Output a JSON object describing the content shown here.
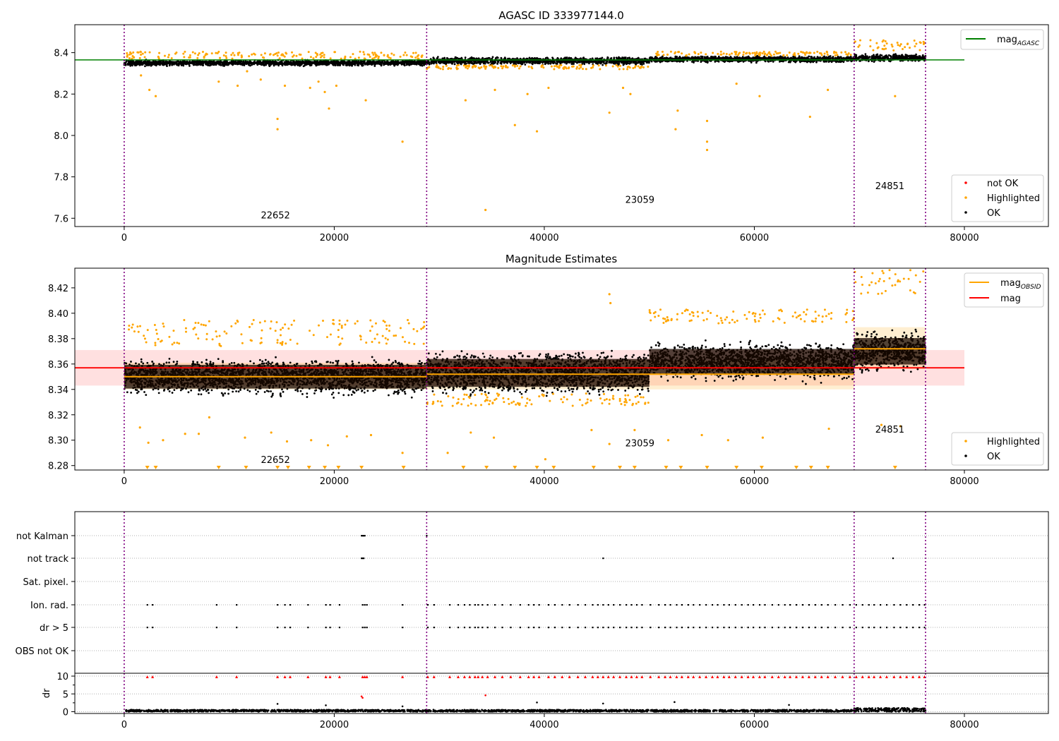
{
  "figure": {
    "title": "AGASC ID 333977144.0"
  },
  "chart_data": [
    {
      "type": "scatter",
      "title": "AGASC ID 333977144.0",
      "xlim": [
        -4700,
        88000
      ],
      "ylim": [
        7.56,
        8.535
      ],
      "x_ticks": [
        0,
        20000,
        40000,
        60000,
        80000
      ],
      "x_tick_labels": [
        "0",
        "20000",
        "40000",
        "60000",
        "80000"
      ],
      "y_ticks": [
        7.6,
        7.8,
        8.0,
        8.2,
        8.4
      ],
      "y_tick_labels": [
        "7.6",
        "7.8",
        "8.0",
        "8.2",
        "8.4"
      ],
      "grid": false,
      "obs_boundaries": [
        0,
        28800,
        69500,
        76300
      ],
      "obs_labels": [
        {
          "text": "22652",
          "x": 14400,
          "y": 7.6
        },
        {
          "text": "23059",
          "x": 49100,
          "y": 7.675
        },
        {
          "text": "24851",
          "x": 72900,
          "y": 7.74
        }
      ],
      "reference_line": {
        "name": "mag_AGASC",
        "y": 8.365,
        "x_range": [
          -4700,
          80000
        ],
        "color": "#008000"
      },
      "ok_segments": [
        {
          "x0": 0,
          "x1": 28800,
          "center": 8.35,
          "half_width": 0.017
        },
        {
          "x0": 28800,
          "x1": 50000,
          "center": 8.36,
          "half_width": 0.022
        },
        {
          "x0": 50000,
          "x1": 69500,
          "center": 8.368,
          "half_width": 0.018
        },
        {
          "x0": 69500,
          "x1": 76300,
          "center": 8.375,
          "half_width": 0.022
        }
      ],
      "highlight_band": [
        {
          "x0": 0,
          "x1": 28800,
          "lo": 8.37,
          "hi": 8.405
        },
        {
          "x0": 28800,
          "x1": 50000,
          "lo": 8.32,
          "hi": 8.34
        },
        {
          "x0": 50000,
          "x1": 69500,
          "lo": 8.385,
          "hi": 8.405
        },
        {
          "x0": 69500,
          "x1": 76300,
          "lo": 8.41,
          "hi": 8.46
        }
      ],
      "highlighted_outliers": [
        [
          1600,
          8.29
        ],
        [
          2400,
          8.22
        ],
        [
          3000,
          8.19
        ],
        [
          9000,
          8.26
        ],
        [
          10800,
          8.24
        ],
        [
          11700,
          8.31
        ],
        [
          13000,
          8.27
        ],
        [
          14600,
          8.08
        ],
        [
          14600,
          8.03
        ],
        [
          15300,
          8.24
        ],
        [
          17700,
          8.23
        ],
        [
          18500,
          8.26
        ],
        [
          19100,
          8.21
        ],
        [
          19500,
          8.13
        ],
        [
          20200,
          8.24
        ],
        [
          23000,
          8.17
        ],
        [
          26500,
          7.97
        ],
        [
          32500,
          8.17
        ],
        [
          34400,
          7.64
        ],
        [
          35300,
          8.22
        ],
        [
          37200,
          8.05
        ],
        [
          38400,
          8.2
        ],
        [
          39300,
          8.02
        ],
        [
          40400,
          8.23
        ],
        [
          46200,
          8.11
        ],
        [
          47500,
          8.23
        ],
        [
          48200,
          8.2
        ],
        [
          52500,
          8.03
        ],
        [
          52700,
          8.12
        ],
        [
          55500,
          8.07
        ],
        [
          55500,
          7.97
        ],
        [
          55500,
          7.93
        ],
        [
          58300,
          8.25
        ],
        [
          60500,
          8.19
        ],
        [
          65300,
          8.09
        ],
        [
          67000,
          8.22
        ],
        [
          73400,
          8.19
        ]
      ],
      "legends": [
        {
          "position": "top-right",
          "entries": [
            {
              "label": "mag",
              "sub": "AGASC",
              "color": "#008000",
              "kind": "line"
            }
          ]
        },
        {
          "position": "bottom-right",
          "entries": [
            {
              "label": "not OK",
              "color": "#ff0000",
              "kind": "dot"
            },
            {
              "label": "Highlighted",
              "color": "#ffa500",
              "kind": "dot"
            },
            {
              "label": "OK",
              "color": "#000000",
              "kind": "dot"
            }
          ]
        }
      ]
    },
    {
      "type": "scatter",
      "title": "Magnitude Estimates",
      "xlim": [
        -4700,
        88000
      ],
      "ylim": [
        8.2765,
        8.4355
      ],
      "x_ticks": [
        0,
        20000,
        40000,
        60000,
        80000
      ],
      "x_tick_labels": [
        "0",
        "20000",
        "40000",
        "60000",
        "80000"
      ],
      "y_ticks": [
        8.28,
        8.3,
        8.32,
        8.34,
        8.36,
        8.38,
        8.4,
        8.42
      ],
      "y_tick_labels": [
        "8.28",
        "8.30",
        "8.32",
        "8.34",
        "8.36",
        "8.38",
        "8.40",
        "8.42"
      ],
      "grid": false,
      "obs_boundaries": [
        0,
        28800,
        69500,
        76300
      ],
      "obs_labels": [
        {
          "text": "22652",
          "x": 14400,
          "y": 8.282
        },
        {
          "text": "23059",
          "x": 49100,
          "y": 8.295
        },
        {
          "text": "24851",
          "x": 72900,
          "y": 8.306
        }
      ],
      "mag": {
        "name": "mag",
        "y": 8.357,
        "lo": 8.343,
        "hi": 8.371,
        "x_range": [
          -4700,
          80000
        ],
        "color": "#ff0000"
      },
      "mag_obsid": [
        {
          "x0": 0,
          "x1": 28800,
          "y": 8.35,
          "lo": 8.34,
          "hi": 8.361
        },
        {
          "x0": 28800,
          "x1": 69500,
          "y": 8.352,
          "lo": 8.34,
          "hi": 8.363
        },
        {
          "x0": 69500,
          "x1": 76300,
          "y": 8.372,
          "lo": 8.356,
          "hi": 8.389
        }
      ],
      "ok_segments": [
        {
          "x0": 0,
          "x1": 28800,
          "center": 8.35,
          "half_width": 0.017
        },
        {
          "x0": 28800,
          "x1": 50000,
          "center": 8.353,
          "half_width": 0.02
        },
        {
          "x0": 50000,
          "x1": 69500,
          "center": 8.362,
          "half_width": 0.018
        },
        {
          "x0": 69500,
          "x1": 76300,
          "center": 8.37,
          "half_width": 0.019
        }
      ],
      "highlight_band": [
        {
          "x0": 0,
          "x1": 28800,
          "lo": 8.374,
          "hi": 8.395
        },
        {
          "x0": 28800,
          "x1": 50000,
          "lo": 8.327,
          "hi": 8.337
        },
        {
          "x0": 50000,
          "x1": 69500,
          "lo": 8.392,
          "hi": 8.403
        },
        {
          "x0": 69500,
          "x1": 76300,
          "lo": 8.415,
          "hi": 8.434
        }
      ],
      "highlighted_outliers": [
        [
          1500,
          8.31
        ],
        [
          2300,
          8.298
        ],
        [
          3700,
          8.3
        ],
        [
          5800,
          8.305
        ],
        [
          7100,
          8.305
        ],
        [
          8100,
          8.318
        ],
        [
          11500,
          8.302
        ],
        [
          14000,
          8.306
        ],
        [
          15500,
          8.299
        ],
        [
          17800,
          8.3
        ],
        [
          19400,
          8.296
        ],
        [
          21200,
          8.303
        ],
        [
          23500,
          8.304
        ],
        [
          26500,
          8.29
        ],
        [
          30800,
          8.29
        ],
        [
          33000,
          8.306
        ],
        [
          35200,
          8.302
        ],
        [
          40100,
          8.285
        ],
        [
          44500,
          8.308
        ],
        [
          46200,
          8.297
        ],
        [
          48600,
          8.308
        ],
        [
          51800,
          8.3
        ],
        [
          55000,
          8.304
        ],
        [
          57500,
          8.3
        ],
        [
          60800,
          8.302
        ],
        [
          67100,
          8.309
        ],
        [
          72100,
          8.312
        ],
        [
          73900,
          8.311
        ],
        [
          46200,
          8.415
        ],
        [
          46300,
          8.408
        ]
      ],
      "clipped_low_x": [
        2200,
        3000,
        9000,
        11600,
        14600,
        15600,
        17600,
        19100,
        20400,
        22600,
        26600,
        32300,
        34500,
        37200,
        39300,
        40900,
        44700,
        47200,
        48600,
        51600,
        53000,
        55500,
        58300,
        60700,
        64000,
        65400,
        67000,
        73400
      ],
      "legends": [
        {
          "position": "top-right",
          "entries": [
            {
              "label": "mag",
              "sub": "OBSID",
              "color": "#ffa500",
              "kind": "line"
            },
            {
              "label": "mag",
              "sub": "",
              "color": "#ff0000",
              "kind": "line"
            }
          ]
        },
        {
          "position": "bottom-right",
          "entries": [
            {
              "label": "Highlighted",
              "color": "#ffa500",
              "kind": "dot"
            },
            {
              "label": "OK",
              "color": "#000000",
              "kind": "dot"
            }
          ]
        }
      ]
    },
    {
      "type": "scatter",
      "title": "",
      "xlim": [
        -4700,
        88000
      ],
      "x_ticks": [
        0,
        20000,
        40000,
        60000,
        80000
      ],
      "x_tick_labels": [
        "0",
        "20000",
        "40000",
        "60000",
        "80000"
      ],
      "flag_rows": [
        "OBS not OK",
        "dr > 5",
        "Ion. rad.",
        "Sat. pixel.",
        "not track",
        "not Kalman"
      ],
      "grid": "horizontal-dotted",
      "obs_boundaries": [
        0,
        28800,
        69500,
        76300
      ],
      "flag_points": {
        "not Kalman": [
          22600,
          22700,
          22800,
          22900,
          28800
        ],
        "not track": [
          22600,
          22700,
          22800,
          45600,
          73200
        ],
        "Ion. rad.": [
          2200,
          2700,
          8800,
          10700,
          14600,
          15300,
          15800,
          17500,
          19200,
          19600,
          20500,
          22700,
          22900,
          23100,
          26500,
          28900,
          29500,
          31000,
          31800,
          32400,
          32900,
          33400,
          33700,
          34100,
          34600,
          35300,
          36000,
          36800,
          37700,
          38500,
          39000,
          39500,
          40400,
          41000,
          41700,
          42400,
          43200,
          43900,
          44600,
          45100,
          45600,
          46100,
          46600,
          47200,
          47800,
          48300,
          48800,
          49300,
          50100,
          50900,
          51500,
          52000,
          52600,
          53100,
          53700,
          54200,
          54800,
          55400,
          56000,
          56500,
          57100,
          57600,
          58200,
          58800,
          59400,
          59900,
          60500,
          61000,
          61700,
          62300,
          62900,
          63400,
          64000,
          64600,
          65200,
          65800,
          66400,
          67000,
          67700,
          68400,
          69100,
          69700,
          70300,
          70900,
          71400,
          72000,
          72600,
          73300,
          73900,
          74500,
          75100,
          75700,
          76200
        ],
        "dr > 5": [
          2200,
          2700,
          8800,
          10700,
          14600,
          15300,
          15800,
          17500,
          19200,
          19600,
          20500,
          22700,
          22900,
          23100,
          26500,
          28900,
          29500,
          31000,
          31800,
          32400,
          32900,
          33400,
          33700,
          34100,
          34600,
          35300,
          36000,
          36800,
          37700,
          38500,
          39000,
          39500,
          40400,
          41000,
          41700,
          42400,
          43200,
          43900,
          44600,
          45100,
          45600,
          46100,
          46600,
          47200,
          47800,
          48300,
          48800,
          49300,
          50100,
          50900,
          51500,
          52000,
          52600,
          53100,
          53700,
          54200,
          54800,
          55400,
          56000,
          56500,
          57100,
          57600,
          58200,
          58800,
          59400,
          59900,
          60500,
          61000,
          61700,
          62300,
          62900,
          63400,
          64000,
          64600,
          65200,
          65800,
          66400,
          67000,
          67700,
          68400,
          69100,
          69700,
          70300,
          70900,
          71400,
          72000,
          72600,
          73300,
          73900,
          74500,
          75100,
          75700,
          76200
        ]
      }
    },
    {
      "type": "scatter",
      "title": "",
      "ylabel": "dr",
      "xlim": [
        -4700,
        88000
      ],
      "ylim": [
        -0.5,
        10.8
      ],
      "y_ticks": [
        0,
        5,
        10
      ],
      "y_tick_labels": [
        "0",
        "5",
        "10"
      ],
      "x_ticks": [
        0,
        20000,
        40000,
        60000,
        80000
      ],
      "x_tick_labels": [
        "0",
        "20000",
        "40000",
        "60000",
        "80000"
      ],
      "obs_boundaries": [
        0,
        28800,
        69500,
        76300
      ],
      "dr_clipped_x": [
        2200,
        2700,
        8800,
        10700,
        14600,
        15300,
        15800,
        17500,
        19200,
        19600,
        20500,
        22700,
        22900,
        23100,
        26500,
        28900,
        29500,
        31000,
        31800,
        32400,
        32900,
        33400,
        33700,
        34100,
        34600,
        35300,
        36000,
        36800,
        37700,
        38500,
        39000,
        39500,
        40400,
        41000,
        41700,
        42400,
        43200,
        43900,
        44600,
        45100,
        45600,
        46100,
        46600,
        47200,
        47800,
        48300,
        48800,
        49300,
        50100,
        50900,
        51500,
        52000,
        52600,
        53100,
        53700,
        54200,
        54800,
        55400,
        56000,
        56500,
        57100,
        57600,
        58200,
        58800,
        59400,
        59900,
        60500,
        61000,
        61700,
        62300,
        62900,
        63400,
        64000,
        64600,
        65200,
        65800,
        66400,
        67000,
        67700,
        68400,
        69100,
        69700,
        70300,
        70900,
        71400,
        72000,
        72600,
        73300,
        73900,
        74500,
        75100,
        75700,
        76200
      ],
      "dr_outliers": [
        [
          14600,
          2.2
        ],
        [
          19200,
          1.8
        ],
        [
          22600,
          4.3
        ],
        [
          22700,
          3.9
        ],
        [
          26500,
          1.5
        ],
        [
          34400,
          4.6
        ],
        [
          39300,
          2.6
        ],
        [
          45600,
          2.3
        ],
        [
          52400,
          2.7
        ],
        [
          63300,
          1.9
        ]
      ],
      "dr_bulk": [
        {
          "x0": 0,
          "x1": 28800,
          "level": 0.55
        },
        {
          "x0": 28800,
          "x1": 69500,
          "level": 0.55
        },
        {
          "x0": 69500,
          "x1": 76300,
          "level": 1.05
        }
      ]
    }
  ]
}
